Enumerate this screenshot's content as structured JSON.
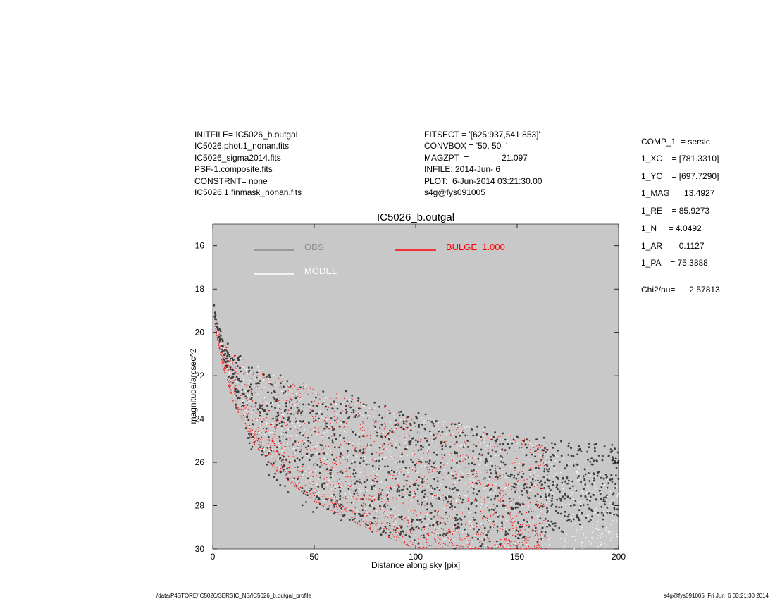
{
  "header": {
    "left": [
      "INITFILE= IC5026_b.outgal",
      "IC5026.phot.1_nonan.fits",
      "IC5026_sigma2014.fits",
      "PSF-1.composite.fits",
      "CONSTRNT= none",
      "IC5026.1.finmask_nonan.fits"
    ],
    "middle": [
      "FITSECT = '[625:937,541:853]'",
      "CONVBOX = '50, 50  '",
      "MAGZPT  =              21.097",
      "INFILE: 2014-Jun- 6",
      "PLOT:  6-Jun-2014 03:21:30.00",
      "s4g@fys091005"
    ],
    "right": [
      "COMP_1  = sersic",
      "1_XC    = [781.3310]",
      "1_YC    = [697.7290]",
      "1_MAG   = 13.4927",
      "1_RE    = 85.9273",
      "1_N     = 4.0492",
      "1_AR    = 0.1127",
      "1_PA    = 75.3888",
      "Chi2/nu=      2.57813"
    ]
  },
  "footer": {
    "left": "/data/P4STORE/IC5026/SERSIC_NS/IC5026_b.outgal_profile",
    "right": "s4g@fys091005  Fri Jun  6 03:21:30 2014"
  },
  "chart_data": {
    "type": "scatter",
    "title": "IC5026_b.outgal",
    "xlabel": "Distance along sky [pix]",
    "ylabel": "magnitude/arcsec^2",
    "xlim": [
      0,
      200
    ],
    "ylim": [
      30,
      15
    ],
    "y_inverted": true,
    "xticks": [
      0,
      50,
      100,
      150,
      200
    ],
    "yticks": [
      16,
      18,
      20,
      22,
      24,
      26,
      28,
      30
    ],
    "background": "#c8c8c8",
    "legend": [
      {
        "name": "OBS",
        "color": "#8c8c8c"
      },
      {
        "name": "BULGE  1.000",
        "color": "#ff0000"
      },
      {
        "name": "MODEL",
        "color": "#ffffff"
      }
    ],
    "series": [
      {
        "name": "OBS",
        "color": "#3c3c3c",
        "mode": "points",
        "x": [
          0.5,
          2,
          5,
          10,
          20,
          30,
          40,
          50,
          60,
          70,
          80,
          90,
          100,
          110,
          120,
          130,
          140,
          150,
          160,
          170,
          180,
          190,
          200
        ],
        "y_upper": [
          18.6,
          19.6,
          20.4,
          21.0,
          21.6,
          21.9,
          22.2,
          22.4,
          22.8,
          23.0,
          23.3,
          23.6,
          23.8,
          24.0,
          24.2,
          24.4,
          24.7,
          24.8,
          25.0,
          25.0,
          25.1,
          25.2,
          25.3
        ],
        "y_lower": [
          19.0,
          19.8,
          21.0,
          23.0,
          25.5,
          26.8,
          27.6,
          28.2,
          28.6,
          29.0,
          29.3,
          29.6,
          29.8,
          29.9,
          30.0,
          30.0,
          30.0,
          29.8,
          29.6,
          29.2,
          29.0,
          28.8,
          28.5
        ]
      },
      {
        "name": "MODEL",
        "color": "#ffffff",
        "mode": "points",
        "x": [
          1,
          5,
          10,
          20,
          30,
          40,
          50,
          60,
          70,
          80,
          90,
          100,
          110,
          120,
          130,
          140,
          150,
          160,
          170,
          180,
          190,
          200
        ],
        "y_upper": [
          19.6,
          20.5,
          21.0,
          21.5,
          21.9,
          22.2,
          22.5,
          22.8,
          23.1,
          23.3,
          23.6,
          23.8,
          24.0,
          24.2,
          24.4,
          24.6,
          24.8,
          25.0,
          25.5,
          26.0,
          26.5,
          27.0
        ],
        "y_lower": [
          19.8,
          21.2,
          22.8,
          25.0,
          26.2,
          27.0,
          27.6,
          28.0,
          28.4,
          28.8,
          29.1,
          29.4,
          29.6,
          29.8,
          30.0,
          30.0,
          30.0,
          30.0,
          30.0,
          30.0,
          30.0,
          30.0
        ]
      },
      {
        "name": "BULGE  1.000",
        "color": "#ff0000",
        "mode": "points",
        "x": [
          1,
          5,
          10,
          20,
          30,
          40,
          50,
          60,
          70,
          80,
          90,
          100,
          110,
          120,
          130,
          140,
          150,
          160,
          165
        ],
        "y_upper": [
          19.5,
          20.4,
          21.0,
          21.5,
          21.9,
          22.2,
          22.5,
          22.8,
          23.1,
          23.3,
          23.6,
          23.8,
          24.0,
          24.2,
          24.4,
          24.6,
          24.8,
          25.0,
          25.05
        ],
        "y_lower": [
          19.7,
          21.6,
          23.2,
          25.1,
          26.3,
          27.1,
          27.8,
          28.3,
          28.8,
          29.2,
          29.6,
          30.0,
          30.0,
          30.0,
          30.0,
          30.0,
          30.0,
          30.0,
          30.0
        ]
      }
    ]
  }
}
